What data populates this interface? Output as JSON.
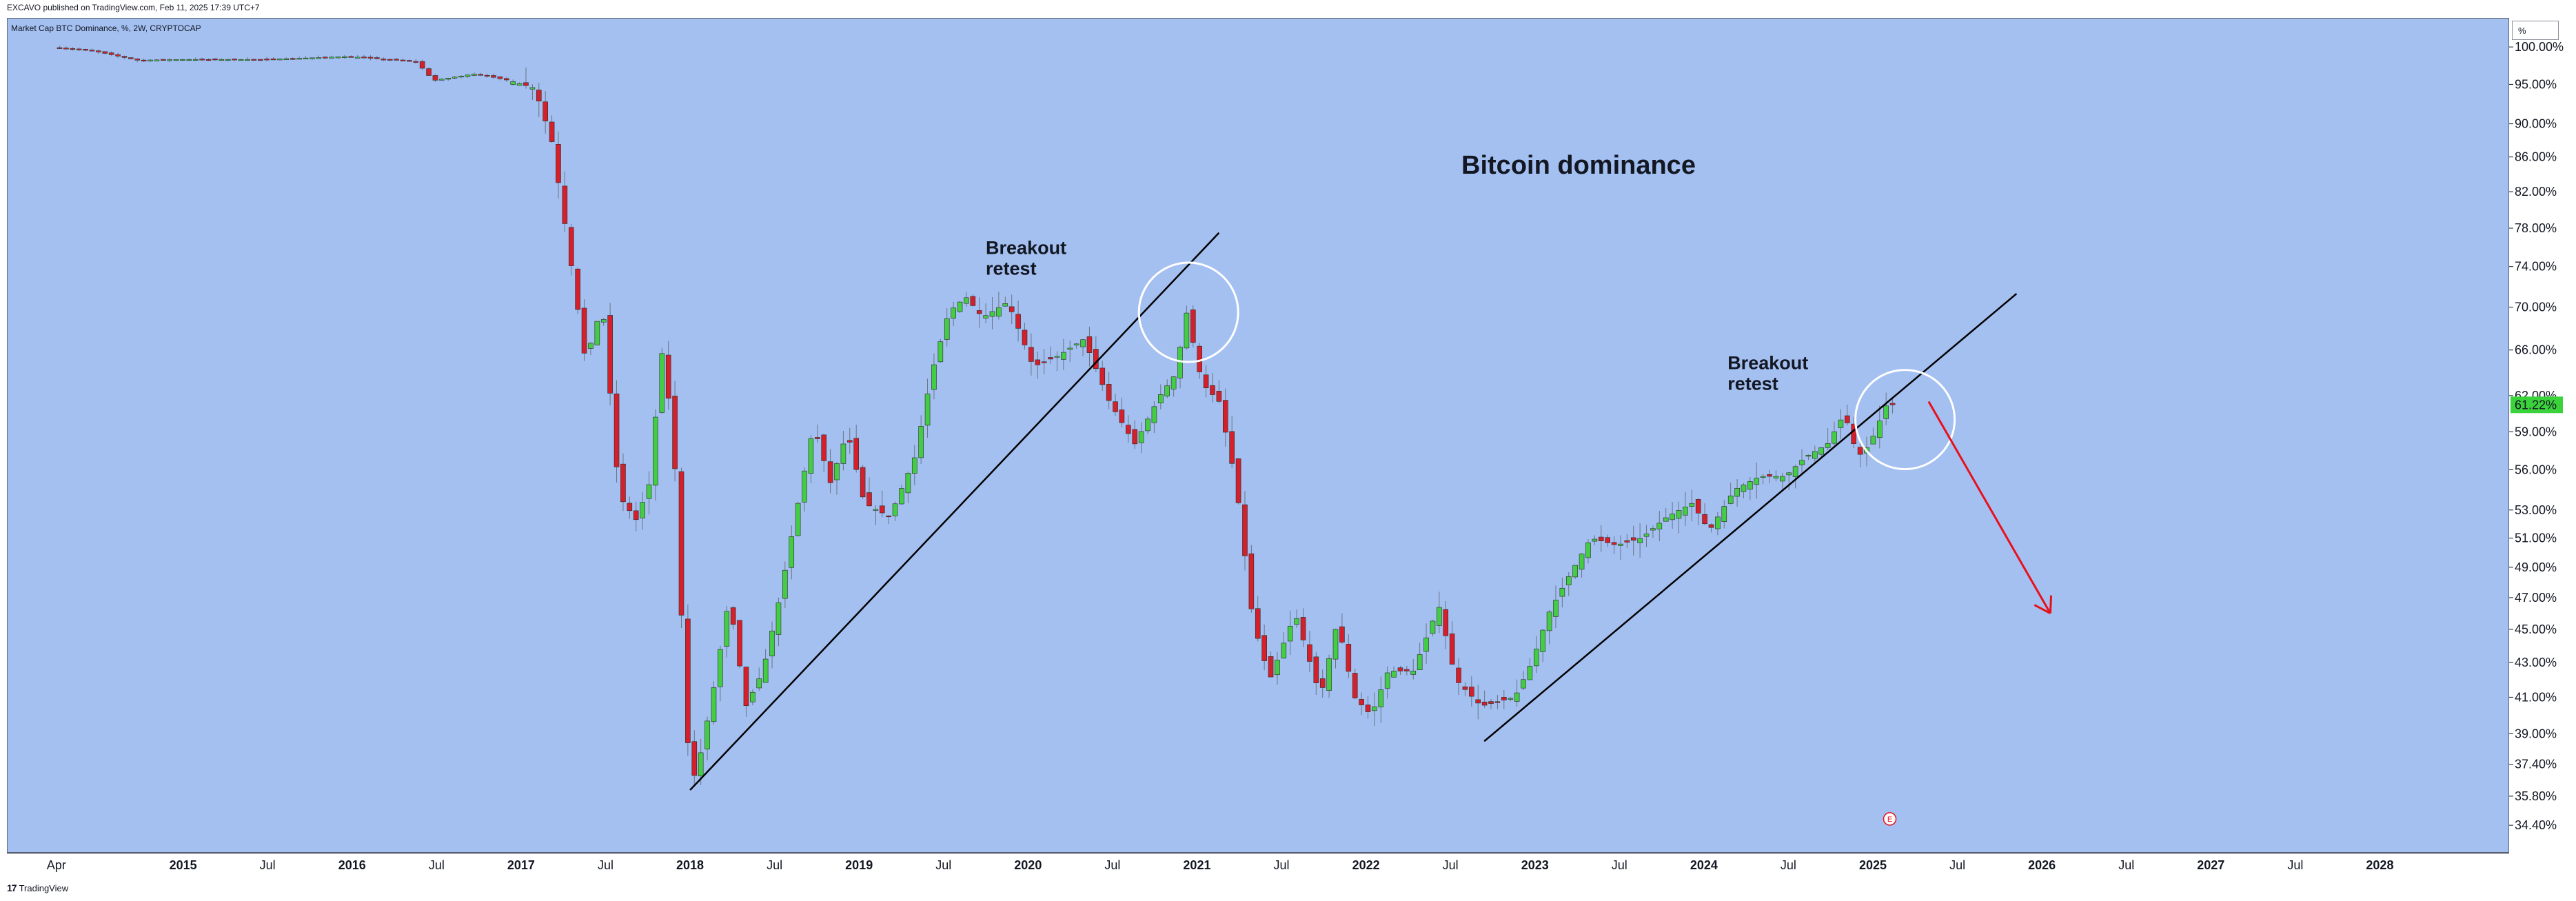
{
  "header": {
    "published_text": "EXCAVO published on TradingView.com, Feb 11, 2025 17:39 UTC+7",
    "symbol_text": "Market Cap BTC Dominance, %, 2W, CRYPTOCAP"
  },
  "price_axis": {
    "unit_label": "%"
  },
  "footer": {
    "logo_text": "TradingView",
    "logo_mark": "17"
  },
  "colors": {
    "background": "#a4c0f1",
    "up": "#44cc44",
    "down": "#d4202a",
    "trendline": "#000000",
    "arrow": "#e8101a",
    "circle": "#ffffff"
  },
  "chart_data": {
    "type": "candlestick",
    "title": "Bitcoin dominance",
    "symbol": "Market Cap BTC Dominance, %, 2W, CRYPTOCAP",
    "y_scale": "log",
    "ylim": [
      33.6,
      102.5
    ],
    "y_ticks": [
      "100.00%",
      "95.00%",
      "90.00%",
      "86.00%",
      "82.00%",
      "78.00%",
      "74.00%",
      "70.00%",
      "66.00%",
      "62.00%",
      "59.00%",
      "56.00%",
      "53.00%",
      "51.00%",
      "49.00%",
      "47.00%",
      "45.00%",
      "43.00%",
      "41.00%",
      "39.00%",
      "37.40%",
      "35.80%",
      "34.40%"
    ],
    "x_range": [
      2014.1,
      2028.5
    ],
    "x_ticks": [
      {
        "label": "Apr",
        "x": 2014.25,
        "year": false
      },
      {
        "label": "2015",
        "x": 2015.0,
        "year": true
      },
      {
        "label": "Jul",
        "x": 2015.5,
        "year": false
      },
      {
        "label": "2016",
        "x": 2016.0,
        "year": true
      },
      {
        "label": "Jul",
        "x": 2016.5,
        "year": false
      },
      {
        "label": "2017",
        "x": 2017.0,
        "year": true
      },
      {
        "label": "Jul",
        "x": 2017.5,
        "year": false
      },
      {
        "label": "2018",
        "x": 2018.0,
        "year": true
      },
      {
        "label": "Jul",
        "x": 2018.5,
        "year": false
      },
      {
        "label": "2019",
        "x": 2019.0,
        "year": true
      },
      {
        "label": "Jul",
        "x": 2019.5,
        "year": false
      },
      {
        "label": "2020",
        "x": 2020.0,
        "year": true
      },
      {
        "label": "Jul",
        "x": 2020.5,
        "year": false
      },
      {
        "label": "2021",
        "x": 2021.0,
        "year": true
      },
      {
        "label": "Jul",
        "x": 2021.5,
        "year": false
      },
      {
        "label": "2022",
        "x": 2022.0,
        "year": true
      },
      {
        "label": "Jul",
        "x": 2022.5,
        "year": false
      },
      {
        "label": "2023",
        "x": 2023.0,
        "year": true
      },
      {
        "label": "Jul",
        "x": 2023.5,
        "year": false
      },
      {
        "label": "2024",
        "x": 2024.0,
        "year": true
      },
      {
        "label": "Jul",
        "x": 2024.5,
        "year": false
      },
      {
        "label": "2025",
        "x": 2025.0,
        "year": true
      },
      {
        "label": "Jul",
        "x": 2025.5,
        "year": false
      },
      {
        "label": "2026",
        "x": 2026.0,
        "year": true
      },
      {
        "label": "Jul",
        "x": 2026.5,
        "year": false
      },
      {
        "label": "2027",
        "x": 2027.0,
        "year": true
      },
      {
        "label": "Jul",
        "x": 2027.5,
        "year": false
      },
      {
        "label": "2028",
        "x": 2028.0,
        "year": true
      }
    ],
    "key_points": [
      {
        "t": 2014.25,
        "v": 100.0
      },
      {
        "t": 2014.5,
        "v": 99.4
      },
      {
        "t": 2014.75,
        "v": 98.2
      },
      {
        "t": 2015.0,
        "v": 98.3
      },
      {
        "t": 2015.5,
        "v": 98.3
      },
      {
        "t": 2016.0,
        "v": 98.7
      },
      {
        "t": 2016.4,
        "v": 98.0
      },
      {
        "t": 2016.5,
        "v": 95.5
      },
      {
        "t": 2016.75,
        "v": 96.4
      },
      {
        "t": 2016.95,
        "v": 95.5
      },
      {
        "t": 2017.1,
        "v": 94.5
      },
      {
        "t": 2017.2,
        "v": 88.0
      },
      {
        "t": 2017.3,
        "v": 76.0
      },
      {
        "t": 2017.4,
        "v": 65.0
      },
      {
        "t": 2017.5,
        "v": 70.3
      },
      {
        "t": 2017.6,
        "v": 54.0
      },
      {
        "t": 2017.7,
        "v": 52.3
      },
      {
        "t": 2017.78,
        "v": 55.0
      },
      {
        "t": 2017.85,
        "v": 66.0
      },
      {
        "t": 2017.92,
        "v": 59.0
      },
      {
        "t": 2018.0,
        "v": 38.8
      },
      {
        "t": 2018.05,
        "v": 36.6
      },
      {
        "t": 2018.15,
        "v": 41.0
      },
      {
        "t": 2018.25,
        "v": 47.0
      },
      {
        "t": 2018.35,
        "v": 40.5
      },
      {
        "t": 2018.45,
        "v": 42.5
      },
      {
        "t": 2018.55,
        "v": 47.0
      },
      {
        "t": 2018.65,
        "v": 53.0
      },
      {
        "t": 2018.75,
        "v": 59.5
      },
      {
        "t": 2018.85,
        "v": 55.0
      },
      {
        "t": 2018.95,
        "v": 59.0
      },
      {
        "t": 2019.05,
        "v": 53.5
      },
      {
        "t": 2019.2,
        "v": 52.5
      },
      {
        "t": 2019.35,
        "v": 57.0
      },
      {
        "t": 2019.45,
        "v": 64.0
      },
      {
        "t": 2019.55,
        "v": 69.5
      },
      {
        "t": 2019.65,
        "v": 71.0
      },
      {
        "t": 2019.75,
        "v": 69.0
      },
      {
        "t": 2019.9,
        "v": 70.5
      },
      {
        "t": 2020.05,
        "v": 64.5
      },
      {
        "t": 2020.2,
        "v": 65.5
      },
      {
        "t": 2020.35,
        "v": 67.0
      },
      {
        "t": 2020.5,
        "v": 61.5
      },
      {
        "t": 2020.65,
        "v": 58.0
      },
      {
        "t": 2020.8,
        "v": 62.0
      },
      {
        "t": 2020.9,
        "v": 64.0
      },
      {
        "t": 2020.95,
        "v": 70.0
      },
      {
        "t": 2021.05,
        "v": 63.0
      },
      {
        "t": 2021.15,
        "v": 61.5
      },
      {
        "t": 2021.25,
        "v": 55.0
      },
      {
        "t": 2021.35,
        "v": 45.5
      },
      {
        "t": 2021.45,
        "v": 42.0
      },
      {
        "t": 2021.6,
        "v": 46.0
      },
      {
        "t": 2021.75,
        "v": 41.0
      },
      {
        "t": 2021.85,
        "v": 45.5
      },
      {
        "t": 2021.95,
        "v": 41.0
      },
      {
        "t": 2022.05,
        "v": 40.0
      },
      {
        "t": 2022.15,
        "v": 42.5
      },
      {
        "t": 2022.3,
        "v": 42.5
      },
      {
        "t": 2022.45,
        "v": 46.5
      },
      {
        "t": 2022.55,
        "v": 42.0
      },
      {
        "t": 2022.7,
        "v": 40.5
      },
      {
        "t": 2022.9,
        "v": 41.0
      },
      {
        "t": 2023.0,
        "v": 43.0
      },
      {
        "t": 2023.1,
        "v": 46.0
      },
      {
        "t": 2023.2,
        "v": 48.0
      },
      {
        "t": 2023.35,
        "v": 51.0
      },
      {
        "t": 2023.5,
        "v": 50.5
      },
      {
        "t": 2023.65,
        "v": 51.0
      },
      {
        "t": 2023.8,
        "v": 52.5
      },
      {
        "t": 2023.95,
        "v": 53.5
      },
      {
        "t": 2024.05,
        "v": 51.5
      },
      {
        "t": 2024.2,
        "v": 54.5
      },
      {
        "t": 2024.35,
        "v": 55.5
      },
      {
        "t": 2024.5,
        "v": 55.5
      },
      {
        "t": 2024.62,
        "v": 57.0
      },
      {
        "t": 2024.75,
        "v": 58.0
      },
      {
        "t": 2024.85,
        "v": 60.5
      },
      {
        "t": 2024.93,
        "v": 57.0
      },
      {
        "t": 2025.0,
        "v": 58.0
      },
      {
        "t": 2025.1,
        "v": 61.22
      }
    ],
    "last_price": {
      "value": 61.22,
      "label": "61.22%"
    },
    "annotations": {
      "title": "Bitcoin dominance",
      "retest_labels": [
        {
          "line1": "Breakout",
          "line2": "retest",
          "t": 2019.75,
          "v": 75.3
        },
        {
          "line1": "Breakout",
          "line2": "retest",
          "t": 2024.14,
          "v": 64.3
        }
      ],
      "trendlines": [
        {
          "from": {
            "t": 2018.0,
            "v": 36.1
          },
          "to": {
            "t": 2021.13,
            "v": 77.5
          }
        },
        {
          "from": {
            "t": 2022.7,
            "v": 38.6
          },
          "to": {
            "t": 2025.85,
            "v": 71.3
          }
        }
      ],
      "circles": [
        {
          "t": 2020.95,
          "v": 69.5
        },
        {
          "t": 2025.19,
          "v": 60.0
        }
      ],
      "projection_arrow": {
        "from": {
          "t": 2025.33,
          "v": 61.5
        },
        "to": {
          "t": 2026.05,
          "v": 46.0
        }
      },
      "event_marker": {
        "t": 2025.1,
        "v": 34.7,
        "label": "E"
      }
    }
  }
}
